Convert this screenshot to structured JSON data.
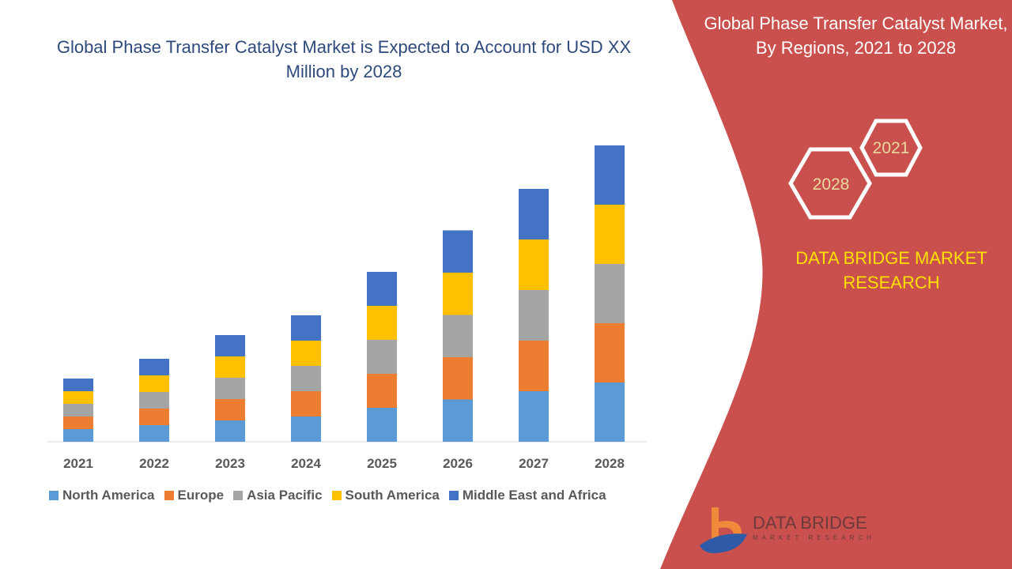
{
  "title": "Global Phase Transfer Catalyst Market is Expected to Account for USD XX Million by 2028",
  "side_panel": {
    "title": "Global Phase Transfer Catalyst Market, By Regions, 2021 to 2028",
    "hex_labels": [
      "2021",
      "2028"
    ],
    "brand": "DATA BRIDGE MARKET RESEARCH",
    "logo_text": "DATA BRIDGE",
    "logo_subtext": "MARKET RESEARCH",
    "color": "#C9504C"
  },
  "chart_data": {
    "type": "bar",
    "stacked": true,
    "title": "Global Phase Transfer Catalyst Market is Expected to Account for USD XX Million by 2028",
    "categories": [
      "2021",
      "2022",
      "2023",
      "2024",
      "2025",
      "2026",
      "2027",
      "2028"
    ],
    "series": [
      {
        "name": "North America",
        "color": "#5B9BD5",
        "values": [
          16,
          21,
          27,
          32,
          43,
          53.5,
          64,
          75
        ]
      },
      {
        "name": "Europe",
        "color": "#ED7D31",
        "values": [
          16,
          21,
          27,
          32,
          43,
          53.5,
          64,
          75
        ]
      },
      {
        "name": "Asia Pacific",
        "color": "#A5A5A5",
        "values": [
          16,
          21,
          27,
          32,
          43,
          53.5,
          64,
          75
        ]
      },
      {
        "name": "South America",
        "color": "#FFC000",
        "values": [
          16,
          21,
          27,
          32,
          43,
          53.5,
          64,
          75
        ]
      },
      {
        "name": "Middle East and Africa",
        "color": "#4472C4",
        "values": [
          16,
          21,
          27,
          32,
          43,
          53.5,
          64,
          75
        ]
      }
    ],
    "xlabel": "",
    "ylabel": "",
    "y_axis_shown": false,
    "grid": false,
    "legend_position": "bottom"
  }
}
